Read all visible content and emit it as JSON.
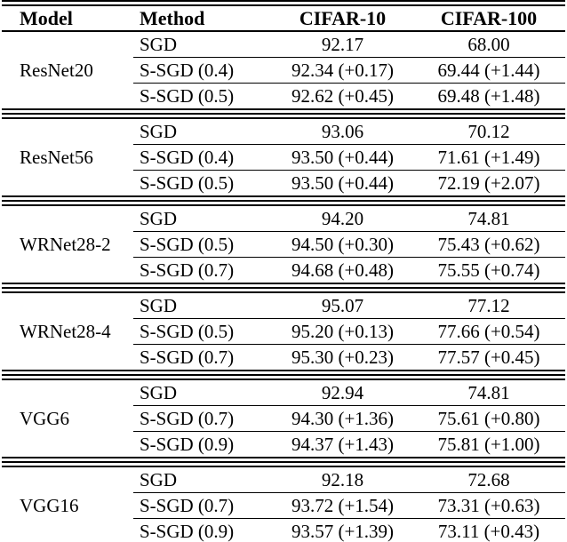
{
  "colors": {
    "text": "#000000",
    "background": "#ffffff",
    "rule": "#000000"
  },
  "table": {
    "header": {
      "model": "Model",
      "method": "Method",
      "cifar10": "CIFAR-10",
      "cifar100": "CIFAR-100"
    },
    "groups": [
      {
        "model": "ResNet20",
        "rows": [
          {
            "method": "SGD",
            "cifar10": "92.17",
            "cifar100": "68.00"
          },
          {
            "method": "S-SGD (0.4)",
            "cifar10": "92.34 (+0.17)",
            "cifar100": "69.44 (+1.44)"
          },
          {
            "method": "S-SGD (0.5)",
            "cifar10": "92.62 (+0.45)",
            "cifar100": "69.48 (+1.48)"
          }
        ]
      },
      {
        "model": "ResNet56",
        "rows": [
          {
            "method": "SGD",
            "cifar10": "93.06",
            "cifar100": "70.12"
          },
          {
            "method": "S-SGD (0.4)",
            "cifar10": "93.50 (+0.44)",
            "cifar100": "71.61 (+1.49)"
          },
          {
            "method": "S-SGD (0.5)",
            "cifar10": "93.50 (+0.44)",
            "cifar100": "72.19 (+2.07)"
          }
        ]
      },
      {
        "model": "WRNet28-2",
        "rows": [
          {
            "method": "SGD",
            "cifar10": "94.20",
            "cifar100": "74.81"
          },
          {
            "method": "S-SGD (0.5)",
            "cifar10": "94.50 (+0.30)",
            "cifar100": "75.43 (+0.62)"
          },
          {
            "method": "S-SGD (0.7)",
            "cifar10": "94.68 (+0.48)",
            "cifar100": "75.55 (+0.74)"
          }
        ]
      },
      {
        "model": "WRNet28-4",
        "rows": [
          {
            "method": "SGD",
            "cifar10": "95.07",
            "cifar100": "77.12"
          },
          {
            "method": "S-SGD (0.5)",
            "cifar10": "95.20 (+0.13)",
            "cifar100": "77.66 (+0.54)"
          },
          {
            "method": "S-SGD (0.7)",
            "cifar10": "95.30 (+0.23)",
            "cifar100": "77.57 (+0.45)"
          }
        ]
      },
      {
        "model": "VGG6",
        "rows": [
          {
            "method": "SGD",
            "cifar10": "92.94",
            "cifar100": "74.81"
          },
          {
            "method": "S-SGD (0.7)",
            "cifar10": "94.30 (+1.36)",
            "cifar100": "75.61 (+0.80)"
          },
          {
            "method": "S-SGD (0.9)",
            "cifar10": "94.37 (+1.43)",
            "cifar100": "75.81 (+1.00)"
          }
        ]
      },
      {
        "model": "VGG16",
        "rows": [
          {
            "method": "SGD",
            "cifar10": "92.18",
            "cifar100": "72.68"
          },
          {
            "method": "S-SGD (0.7)",
            "cifar10": "93.72 (+1.54)",
            "cifar100": "73.31 (+0.63)"
          },
          {
            "method": "S-SGD (0.9)",
            "cifar10": "93.57 (+1.39)",
            "cifar100": "73.11 (+0.43)"
          }
        ]
      }
    ]
  }
}
